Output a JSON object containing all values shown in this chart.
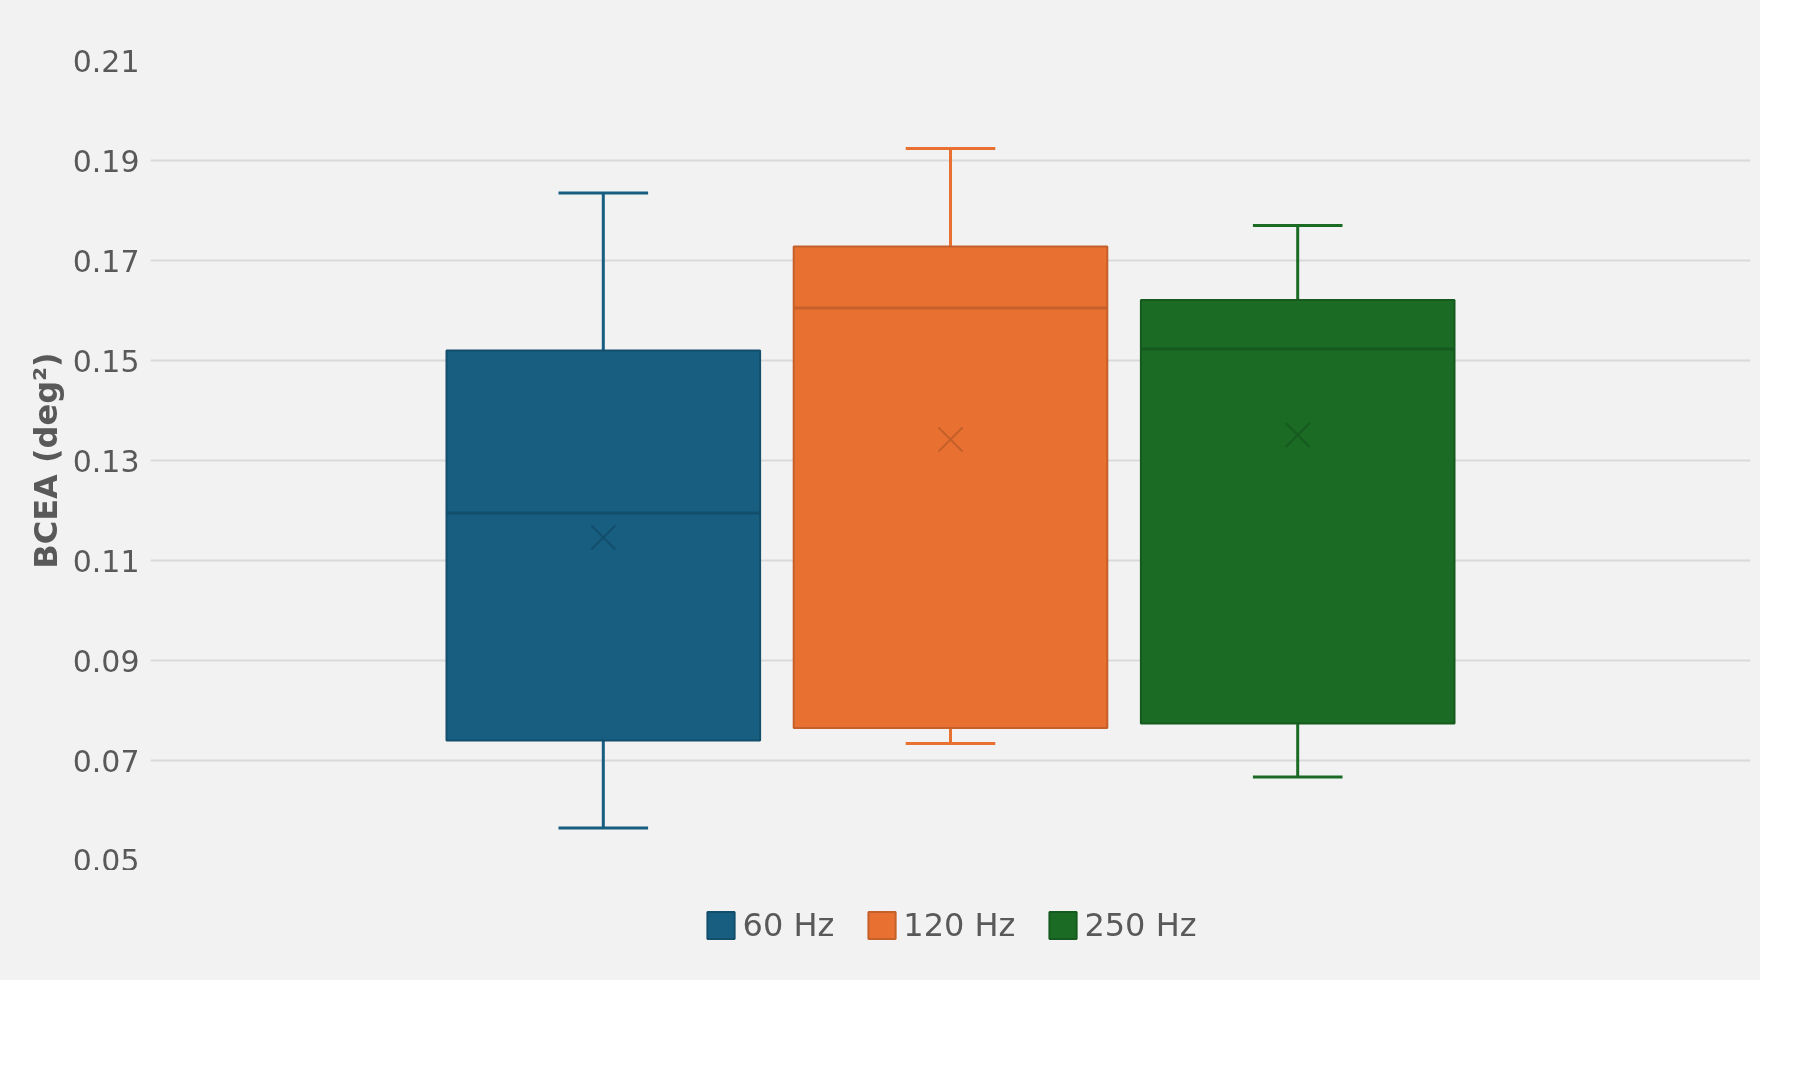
{
  "chart_data": {
    "type": "box",
    "ylabel": "BCEA (deg²)",
    "categories": [
      null
    ],
    "series": [
      {
        "name": "60 Hz",
        "color": "#175e80",
        "boxes": [
          {
            "low": 0.0565,
            "q1": 0.074,
            "median": 0.1195,
            "q3": 0.152,
            "high": 0.1835,
            "mean": 0.1146
          }
        ]
      },
      {
        "name": "120 Hz",
        "color": "#e87132",
        "boxes": [
          {
            "low": 0.0734,
            "q1": 0.0765,
            "median": 0.1605,
            "q3": 0.1728,
            "high": 0.1924,
            "mean": 0.1342
          }
        ]
      },
      {
        "name": "250 Hz",
        "color": "#1b6b25",
        "boxes": [
          {
            "low": 0.0667,
            "q1": 0.0774,
            "median": 0.1523,
            "q3": 0.1621,
            "high": 0.177,
            "mean": 0.1351
          }
        ]
      }
    ],
    "ylim": [
      0.05,
      0.21
    ],
    "yticks": [
      0.05,
      0.07,
      0.09,
      0.11,
      0.13,
      0.15,
      0.17,
      0.19,
      0.21
    ],
    "grid": "y",
    "legend": "bottom",
    "tick_labels": "y",
    "marker": "cross"
  }
}
